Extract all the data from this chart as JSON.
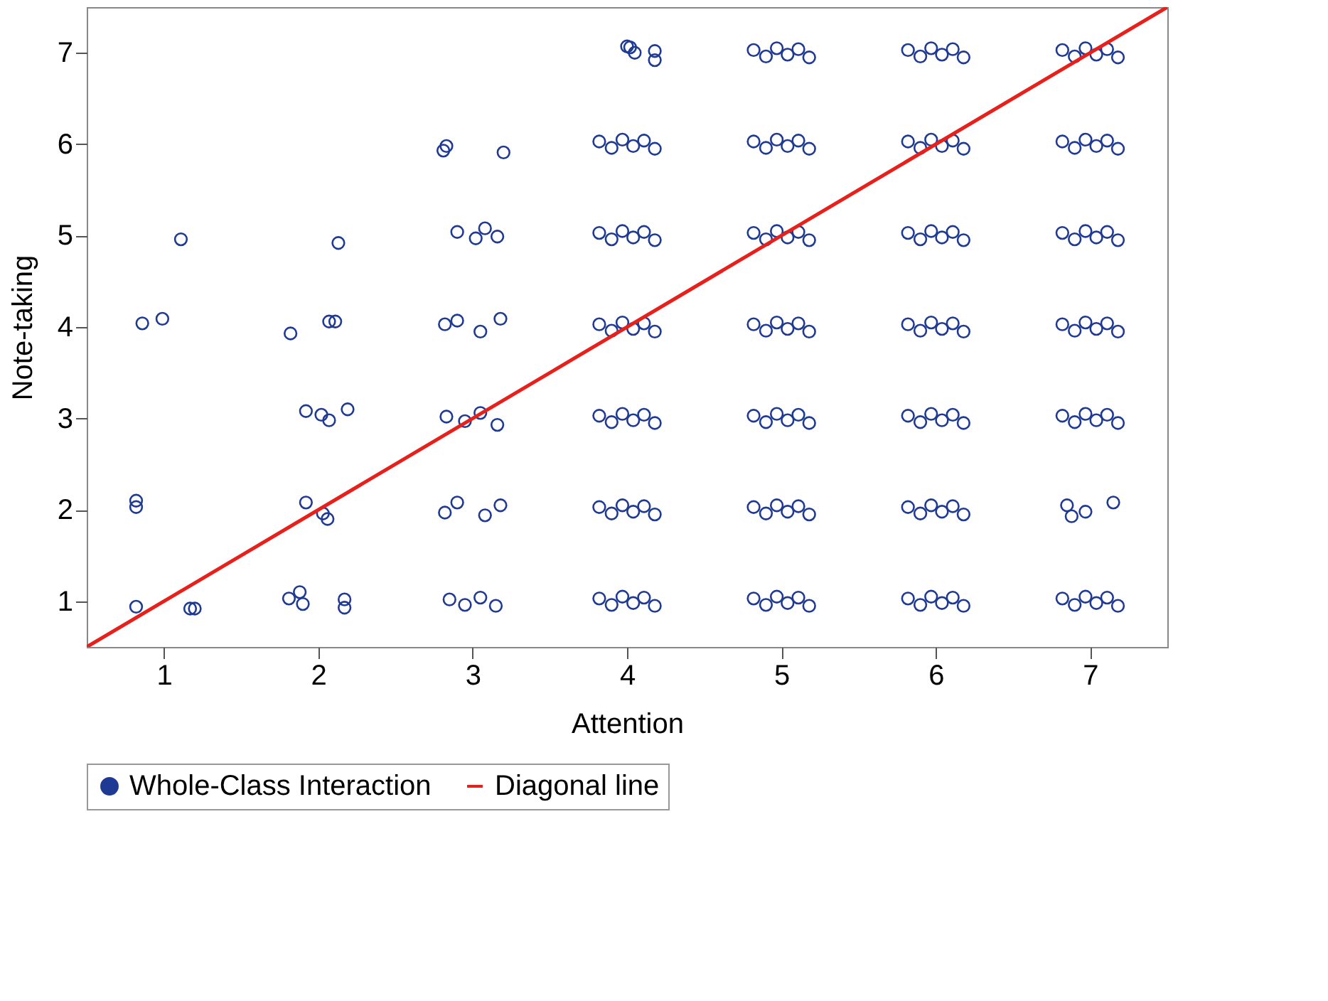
{
  "chart_data": {
    "type": "scatter",
    "xlabel": "Attention",
    "ylabel": "Note-taking",
    "xlim": [
      0.5,
      7.5
    ],
    "ylim": [
      0.5,
      7.5
    ],
    "xticks": [
      1,
      2,
      3,
      4,
      5,
      6,
      7
    ],
    "yticks": [
      1,
      2,
      3,
      4,
      5,
      6,
      7
    ],
    "grid": false,
    "legend": "bottom",
    "series": [
      {
        "name": "Whole-Class Interaction",
        "marker": "circle",
        "color": "#1f3a93",
        "x": [
          0.82,
          1.17,
          1.2,
          0.82,
          0.82,
          0.86,
          0.99,
          1.11,
          1.81,
          1.88,
          1.9,
          2.17,
          2.17,
          1.92,
          2.03,
          2.06,
          1.92,
          2.02,
          2.07,
          2.19,
          1.82,
          2.07,
          2.11,
          2.13,
          2.85,
          2.95,
          3.05,
          3.15,
          2.82,
          2.9,
          3.08,
          3.18,
          2.83,
          2.95,
          3.05,
          3.16,
          2.82,
          2.9,
          3.05,
          3.18,
          2.9,
          3.02,
          3.08,
          3.16,
          2.81,
          2.83,
          3.2,
          3.82,
          3.9,
          3.97,
          4.04,
          4.11,
          4.18,
          3.82,
          3.9,
          3.97,
          4.04,
          4.11,
          4.18,
          3.82,
          3.9,
          3.97,
          4.04,
          4.11,
          4.18,
          3.82,
          3.9,
          3.97,
          4.04,
          4.11,
          4.18,
          3.82,
          3.9,
          3.97,
          4.04,
          4.11,
          4.18,
          3.82,
          3.9,
          3.97,
          4.04,
          4.11,
          4.18,
          4.0,
          4.02,
          4.05,
          4.18,
          4.18,
          4.82,
          4.9,
          4.97,
          5.04,
          5.11,
          5.18,
          4.82,
          4.9,
          4.97,
          5.04,
          5.11,
          5.18,
          4.82,
          4.9,
          4.97,
          5.04,
          5.11,
          5.18,
          4.82,
          4.9,
          4.97,
          5.04,
          5.11,
          5.18,
          4.82,
          4.9,
          4.97,
          5.04,
          5.11,
          5.18,
          4.82,
          4.9,
          4.97,
          5.04,
          5.11,
          5.18,
          4.82,
          4.9,
          4.97,
          5.04,
          5.11,
          5.18,
          5.82,
          5.9,
          5.97,
          6.04,
          6.11,
          6.18,
          5.82,
          5.9,
          5.97,
          6.04,
          6.11,
          6.18,
          5.82,
          5.9,
          5.97,
          6.04,
          6.11,
          6.18,
          5.82,
          5.9,
          5.97,
          6.04,
          6.11,
          6.18,
          5.82,
          5.9,
          5.97,
          6.04,
          6.11,
          6.18,
          5.82,
          5.9,
          5.97,
          6.04,
          6.11,
          6.18,
          5.82,
          5.9,
          5.97,
          6.04,
          6.11,
          6.18,
          6.82,
          6.9,
          6.97,
          7.04,
          7.11,
          7.18,
          6.85,
          6.88,
          6.97,
          7.15,
          6.82,
          6.9,
          6.97,
          7.04,
          7.11,
          7.18,
          6.82,
          6.9,
          6.97,
          7.04,
          7.11,
          7.18,
          6.82,
          6.9,
          6.97,
          7.04,
          7.11,
          7.18,
          6.82,
          6.9,
          6.97,
          7.04,
          7.11,
          7.18,
          6.82,
          6.9,
          6.97,
          7.04,
          7.11,
          7.18
        ],
        "values": [
          0.94,
          0.92,
          0.92,
          2.03,
          2.1,
          4.04,
          4.09,
          4.96,
          1.03,
          1.1,
          0.97,
          0.93,
          1.02,
          2.08,
          1.96,
          1.9,
          3.08,
          3.04,
          2.98,
          3.1,
          3.93,
          4.06,
          4.06,
          4.92,
          1.02,
          0.96,
          1.04,
          0.95,
          1.97,
          2.08,
          1.94,
          2.05,
          3.02,
          2.97,
          3.06,
          2.93,
          4.03,
          4.07,
          3.95,
          4.09,
          5.04,
          4.97,
          5.08,
          4.99,
          5.93,
          5.98,
          5.91,
          1.03,
          0.96,
          1.05,
          0.98,
          1.04,
          0.95,
          2.03,
          1.96,
          2.05,
          1.98,
          2.04,
          1.95,
          3.03,
          2.96,
          3.05,
          2.98,
          3.04,
          2.95,
          4.03,
          3.96,
          4.05,
          3.98,
          4.04,
          3.95,
          5.03,
          4.96,
          5.05,
          4.98,
          5.04,
          4.95,
          6.03,
          5.96,
          6.05,
          5.98,
          6.04,
          5.95,
          7.07,
          7.06,
          7.0,
          7.02,
          6.92,
          1.03,
          0.96,
          1.05,
          0.98,
          1.04,
          0.95,
          2.03,
          1.96,
          2.05,
          1.98,
          2.04,
          1.95,
          3.03,
          2.96,
          3.05,
          2.98,
          3.04,
          2.95,
          4.03,
          3.96,
          4.05,
          3.98,
          4.04,
          3.95,
          5.03,
          4.96,
          5.05,
          4.98,
          5.04,
          4.95,
          6.03,
          5.96,
          6.05,
          5.98,
          6.04,
          5.95,
          7.03,
          6.96,
          7.05,
          6.98,
          7.04,
          6.95,
          1.03,
          0.96,
          1.05,
          0.98,
          1.04,
          0.95,
          2.03,
          1.96,
          2.05,
          1.98,
          2.04,
          1.95,
          3.03,
          2.96,
          3.05,
          2.98,
          3.04,
          2.95,
          4.03,
          3.96,
          4.05,
          3.98,
          4.04,
          3.95,
          5.03,
          4.96,
          5.05,
          4.98,
          5.04,
          4.95,
          6.03,
          5.96,
          6.05,
          5.98,
          6.04,
          5.95,
          7.03,
          6.96,
          7.05,
          6.98,
          7.04,
          6.95,
          1.03,
          0.96,
          1.05,
          0.98,
          1.04,
          0.95,
          2.05,
          1.93,
          1.98,
          2.08,
          3.03,
          2.96,
          3.05,
          2.98,
          3.04,
          2.95,
          4.03,
          3.96,
          4.05,
          3.98,
          4.04,
          3.95,
          5.03,
          4.96,
          5.05,
          4.98,
          5.04,
          4.95,
          6.03,
          5.96,
          6.05,
          5.98,
          6.04,
          5.95,
          7.03,
          6.96,
          7.05,
          6.98,
          7.04,
          6.95
        ]
      },
      {
        "name": "Diagonal line",
        "type": "line",
        "marker": "none",
        "color": "#e8201c",
        "line_style": "solid",
        "x": [
          0.5,
          7.5
        ],
        "values": [
          0.5,
          7.5
        ]
      }
    ]
  }
}
